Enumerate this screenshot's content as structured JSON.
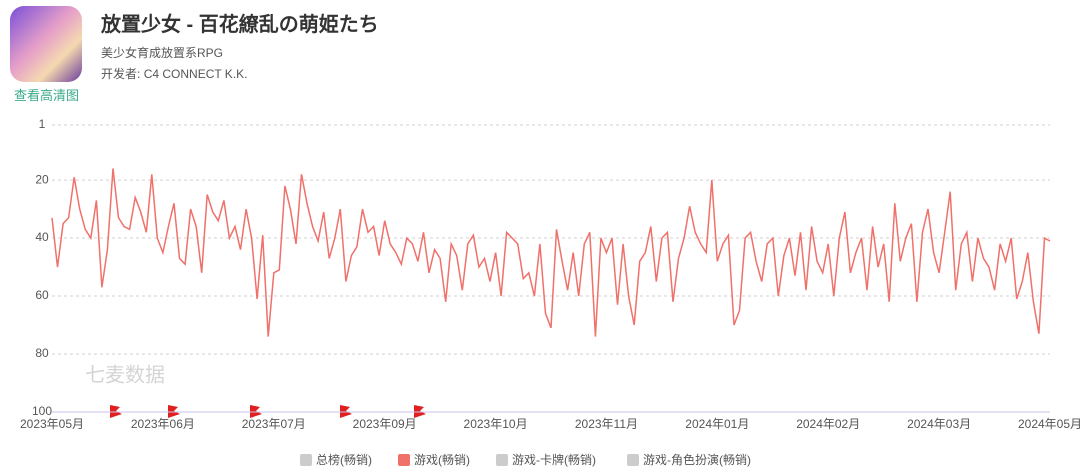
{
  "header": {
    "title": "放置少女 - 百花繚乱の萌姫たち",
    "subtitle": "美少女育成放置系RPG",
    "developer_label": "开发者:",
    "developer": "C4 CONNECT K.K.",
    "icon_link": "查看高清图"
  },
  "watermark": "七麦数据",
  "legend_items": [
    {
      "label": "总榜(畅销)",
      "color": "#cccccc"
    },
    {
      "label": "游戏(畅销)",
      "color": "#f0706a"
    },
    {
      "label": "游戏-卡牌(畅销)",
      "color": "#cccccc"
    },
    {
      "label": "游戏-角色扮演(畅销)",
      "color": "#cccccc"
    }
  ],
  "chart_data": {
    "type": "line",
    "categories": [
      "2023年05月",
      null,
      null,
      null,
      null,
      null,
      null,
      null,
      null,
      null,
      null,
      null,
      null,
      null,
      null,
      null,
      null,
      null,
      null,
      null,
      "2023年06月",
      null,
      null,
      null,
      null,
      null,
      null,
      null,
      null,
      null,
      null,
      null,
      null,
      null,
      null,
      null,
      null,
      null,
      null,
      null,
      "2023年07月",
      null,
      null,
      null,
      null,
      null,
      null,
      null,
      null,
      null,
      null,
      null,
      null,
      null,
      null,
      null,
      null,
      null,
      null,
      null,
      "2023年09月",
      null,
      null,
      null,
      null,
      null,
      null,
      null,
      null,
      null,
      null,
      null,
      null,
      null,
      null,
      null,
      null,
      null,
      null,
      null,
      "2023年10月",
      null,
      null,
      null,
      null,
      null,
      null,
      null,
      null,
      null,
      null,
      null,
      null,
      null,
      null,
      null,
      null,
      null,
      null,
      null,
      "2023年11月",
      null,
      null,
      null,
      null,
      null,
      null,
      null,
      null,
      null,
      null,
      null,
      null,
      null,
      null,
      null,
      null,
      null,
      null,
      null,
      "2024年01月",
      null,
      null,
      null,
      null,
      null,
      null,
      null,
      null,
      null,
      null,
      null,
      null,
      null,
      null,
      null,
      null,
      null,
      null,
      null,
      "2024年02月",
      null,
      null,
      null,
      null,
      null,
      null,
      null,
      null,
      null,
      null,
      null,
      null,
      null,
      null,
      null,
      null,
      null,
      null,
      null,
      "2024年03月",
      null,
      null,
      null,
      null,
      null,
      null,
      null,
      null,
      null,
      null,
      null,
      null,
      null,
      null,
      null,
      null,
      null,
      null,
      null,
      "2024年05月"
    ],
    "series": [
      {
        "name": "游戏(畅销)",
        "color": "#f0706a",
        "values": [
          33,
          50,
          35,
          33,
          19,
          30,
          37,
          40,
          27,
          57,
          44,
          16,
          33,
          36,
          37,
          26,
          31,
          38,
          18,
          40,
          45,
          36,
          28,
          47,
          49,
          30,
          36,
          52,
          25,
          31,
          34,
          27,
          40,
          36,
          44,
          30,
          40,
          61,
          39,
          74,
          52,
          51,
          22,
          30,
          42,
          18,
          28,
          36,
          41,
          31,
          47,
          40,
          30,
          55,
          46,
          43,
          30,
          38,
          36,
          46,
          34,
          42,
          45,
          49,
          40,
          42,
          48,
          38,
          52,
          44,
          47,
          62,
          42,
          46,
          58,
          42,
          39,
          50,
          47,
          55,
          45,
          60,
          38,
          40,
          42,
          54,
          52,
          60,
          42,
          66,
          71,
          37,
          48,
          58,
          45,
          60,
          42,
          38,
          74,
          40,
          45,
          40,
          63,
          42,
          60,
          70,
          48,
          45,
          36,
          55,
          40,
          38,
          62,
          47,
          40,
          29,
          38,
          42,
          45,
          20,
          48,
          42,
          39,
          70,
          65,
          40,
          38,
          48,
          55,
          42,
          40,
          60,
          46,
          40,
          53,
          38,
          58,
          36,
          48,
          52,
          42,
          60,
          40,
          31,
          52,
          45,
          40,
          58,
          36,
          50,
          42,
          62,
          28,
          48,
          40,
          35,
          62,
          38,
          30,
          45,
          52,
          38,
          24,
          58,
          42,
          38,
          55,
          40,
          47,
          50,
          58,
          42,
          48,
          40,
          61,
          55,
          45,
          62,
          73,
          40,
          41
        ]
      }
    ],
    "ylim": [
      100,
      1
    ],
    "yticks": [
      1,
      20,
      40,
      60,
      80,
      100
    ],
    "grid": true
  }
}
